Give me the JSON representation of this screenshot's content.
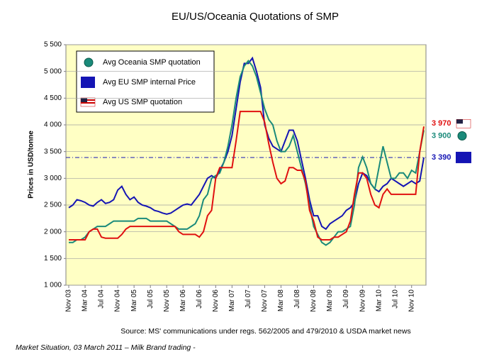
{
  "chart_data": {
    "type": "line",
    "title": "EU/US/Oceania Quotations of SMP",
    "y_label": "Prices in USD/tonne",
    "source": "Source: MS' communications under regs. 562/2005 and 479/2010  & USDA market news",
    "footer": "Market Situation,  03 March 2011 – Milk Brand trading -",
    "categories": [
      "Nov 03",
      null,
      null,
      null,
      "Mar 04",
      null,
      null,
      null,
      "Jul 04",
      null,
      null,
      null,
      "Nov 04",
      null,
      null,
      null,
      "Mar 05",
      null,
      null,
      null,
      "Jul 05",
      null,
      null,
      null,
      "Nov 05",
      null,
      null,
      null,
      "Mar 06",
      null,
      null,
      null,
      "Jul 06",
      null,
      null,
      null,
      "Nov 06",
      null,
      null,
      null,
      "Mar 07",
      null,
      null,
      null,
      "Jul 07",
      null,
      null,
      null,
      "Nov 07",
      null,
      null,
      null,
      "Mar 08",
      null,
      null,
      null,
      "Jul 08",
      null,
      null,
      null,
      "Nov 08",
      null,
      null,
      null,
      "Mar 09",
      null,
      null,
      null,
      "Jul 09",
      null,
      null,
      null,
      "Nov 09",
      null,
      null,
      null,
      "Mar 10",
      null,
      null,
      null,
      "Jul 10",
      null,
      null,
      null,
      "Nov 10",
      null,
      null,
      null
    ],
    "series": [
      {
        "name": "Avg Oceania SMP quotation",
        "color": "#1a8a7a",
        "end_label": "3 900",
        "values": [
          1800,
          1800,
          1850,
          1850,
          1900,
          2000,
          2050,
          2100,
          2100,
          2100,
          2150,
          2200,
          2200,
          2200,
          2200,
          2200,
          2200,
          2250,
          2250,
          2250,
          2200,
          2200,
          2200,
          2200,
          2200,
          2150,
          2100,
          2050,
          2050,
          2050,
          2100,
          2150,
          2300,
          2600,
          2700,
          3000,
          3050,
          3100,
          3300,
          3600,
          4000,
          4500,
          4900,
          5100,
          5200,
          5100,
          4900,
          4600,
          4300,
          4100,
          4000,
          3700,
          3500,
          3500,
          3600,
          3800,
          3500,
          3200,
          2900,
          2500,
          2100,
          1950,
          1800,
          1750,
          1800,
          1900,
          2000,
          2000,
          2050,
          2100,
          2500,
          3200,
          3400,
          3200,
          2900,
          2800,
          3200,
          3600,
          3300,
          3000,
          3000,
          3100,
          3100,
          3000,
          3150,
          3100,
          3500,
          3900
        ]
      },
      {
        "name": "Avg EU SMP internal Price",
        "color": "#1414b4",
        "end_label": "3 390",
        "values": [
          2450,
          2500,
          2600,
          2580,
          2550,
          2500,
          2480,
          2550,
          2600,
          2530,
          2550,
          2600,
          2780,
          2850,
          2700,
          2600,
          2650,
          2550,
          2500,
          2480,
          2450,
          2400,
          2380,
          2350,
          2330,
          2350,
          2400,
          2450,
          2500,
          2520,
          2500,
          2600,
          2700,
          2850,
          3000,
          3050,
          3000,
          3150,
          3300,
          3500,
          3800,
          4300,
          4800,
          5150,
          5150,
          5250,
          5000,
          4700,
          4000,
          3750,
          3600,
          3550,
          3500,
          3700,
          3900,
          3900,
          3700,
          3350,
          3000,
          2600,
          2300,
          2300,
          2100,
          2050,
          2150,
          2200,
          2250,
          2300,
          2400,
          2450,
          2550,
          2900,
          3100,
          3050,
          2900,
          2800,
          2750,
          2850,
          2900,
          3000,
          2950,
          2900,
          2850,
          2900,
          2950,
          2900,
          2950,
          3390
        ]
      },
      {
        "name": "Avg US SMP quotation",
        "color": "#e01010",
        "end_label": "3 970",
        "values": [
          1850,
          1850,
          1850,
          1850,
          1850,
          2000,
          2050,
          2050,
          1900,
          1880,
          1880,
          1880,
          1880,
          1950,
          2050,
          2100,
          2100,
          2100,
          2100,
          2100,
          2100,
          2100,
          2100,
          2100,
          2100,
          2100,
          2100,
          2000,
          1950,
          1950,
          1950,
          1950,
          1900,
          2000,
          2300,
          2400,
          3000,
          3200,
          3200,
          3200,
          3200,
          3700,
          4250,
          4250,
          4250,
          4250,
          4250,
          4250,
          4050,
          3650,
          3300,
          3000,
          2900,
          2950,
          3200,
          3200,
          3150,
          3150,
          2950,
          2400,
          2200,
          1900,
          1850,
          1850,
          1850,
          1900,
          1900,
          1950,
          2000,
          2200,
          2700,
          3100,
          3100,
          3000,
          2700,
          2500,
          2450,
          2700,
          2800,
          2700,
          2700,
          2700,
          2700,
          2700,
          2700,
          2700,
          3500,
          3970
        ]
      }
    ],
    "reference_line": 3390,
    "ylim": [
      1000,
      5500
    ],
    "yticks": [
      {
        "value": 1000,
        "label": "1 000"
      },
      {
        "value": 1500,
        "label": "1 500"
      },
      {
        "value": 2000,
        "label": "2 000"
      },
      {
        "value": 2500,
        "label": "2 500"
      },
      {
        "value": 3000,
        "label": "3 000"
      },
      {
        "value": 3500,
        "label": "3 500"
      },
      {
        "value": 4000,
        "label": "4 000"
      },
      {
        "value": 4500,
        "label": "4 500"
      },
      {
        "value": 5000,
        "label": "5 000"
      },
      {
        "value": 5500,
        "label": "5 500"
      }
    ],
    "grid": true
  }
}
